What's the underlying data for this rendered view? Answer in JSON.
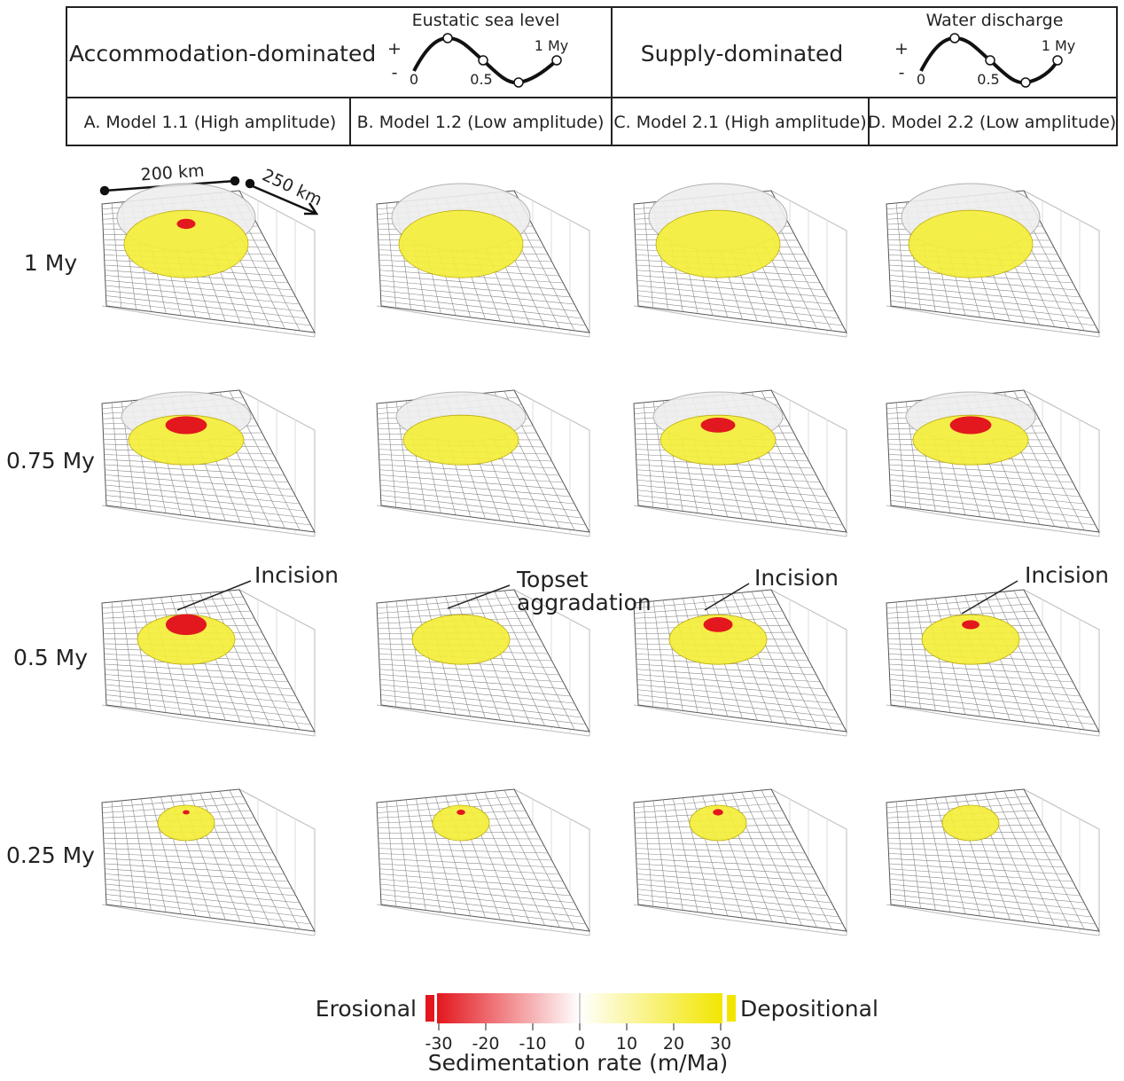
{
  "header": {
    "left": {
      "title": "Accommodation-dominated",
      "curve_label": "Eustatic sea level",
      "plus": "+",
      "minus": "-",
      "t0": "0",
      "t_half": "0.5",
      "t_end": "1 My"
    },
    "right": {
      "title": "Supply-dominated",
      "curve_label": "Water discharge",
      "plus": "+",
      "minus": "-",
      "t0": "0",
      "t_half": "0.5",
      "t_end": "1 My"
    },
    "models": [
      "A. Model 1.1 (High amplitude)",
      "B. Model 1.2 (Low amplitude)",
      "C. Model 2.1 (High amplitude)",
      "D. Model 2.2 (Low amplitude)"
    ]
  },
  "scale": {
    "width": "200 km",
    "length": "250 km"
  },
  "rows": [
    "1 My",
    "0.75 My",
    "0.5 My",
    "0.25 My"
  ],
  "annotations": [
    "Incision",
    "Topset aggradation",
    "Incision",
    "Incision"
  ],
  "colorbar": {
    "left": "Erosional",
    "right": "Depositional",
    "ticks": [
      -30,
      -20,
      -10,
      0,
      10,
      20,
      30
    ],
    "label": "Sedimentation rate (m/Ma)"
  }
}
